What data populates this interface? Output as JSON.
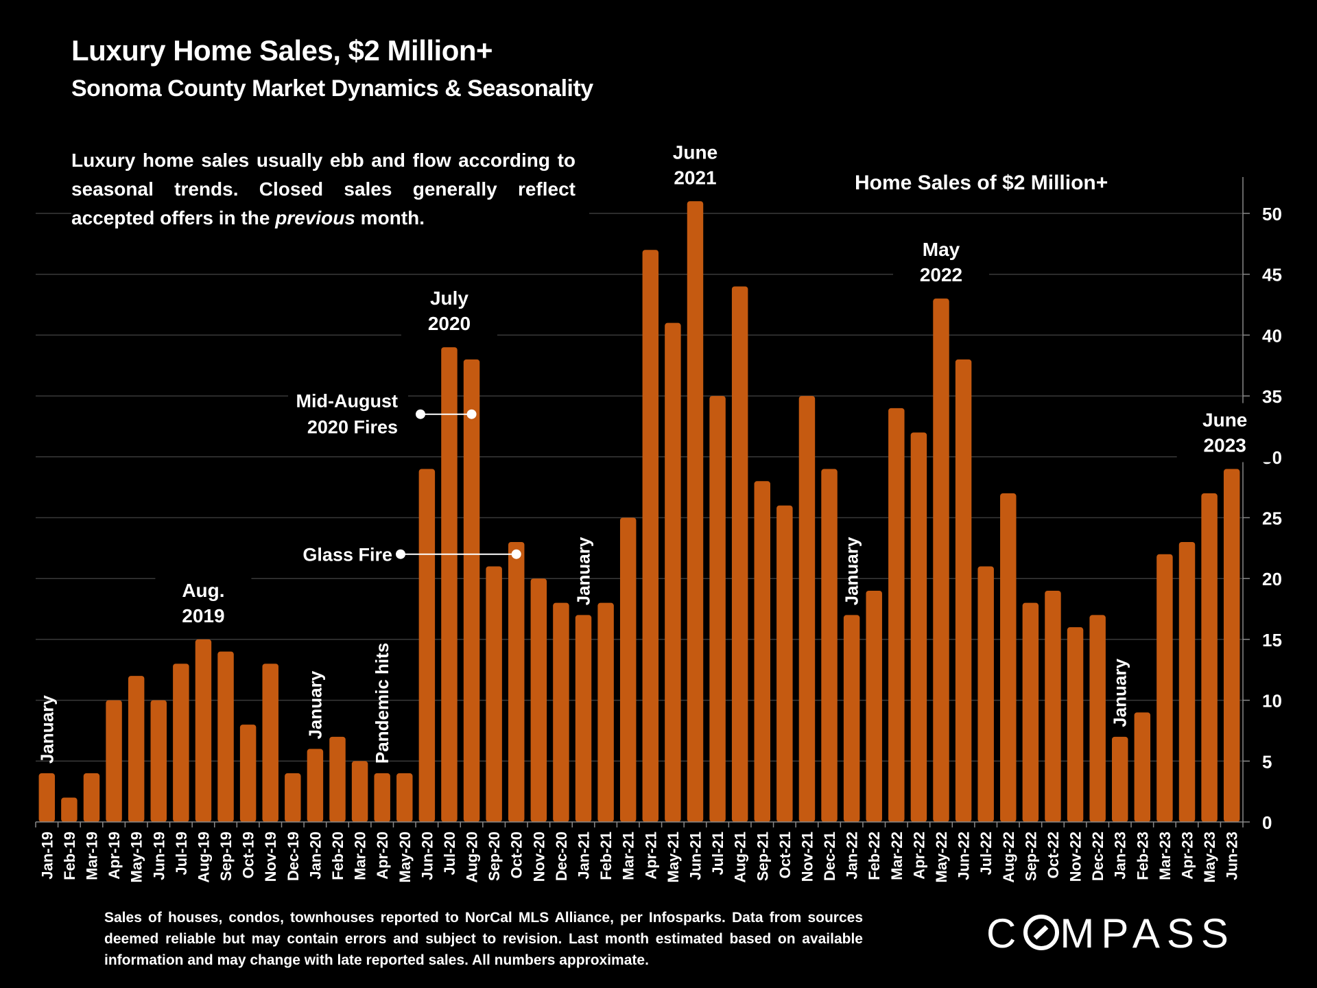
{
  "header": {
    "title": "Luxury Home Sales, $2 Million+",
    "subtitle": "Sonoma County Market Dynamics & Seasonality"
  },
  "intro": {
    "part1": "Luxury home sales usually ebb and flow according to seasonal trends.  Closed sales generally reflect accepted offers in the ",
    "emphasis": "previous",
    "part2": " month."
  },
  "footer": {
    "note": "Sales of houses, condos, townhouses reported to NorCal MLS Alliance, per Infosparks. Data from sources deemed reliable but may contain errors and subject to revision. Last month estimated based on available information and may change with late reported sales. All numbers approximate."
  },
  "logo": {
    "text": "COMPASS",
    "prefix": "C",
    "suffix": "MPASS"
  },
  "colors": {
    "bar": "#C55A11",
    "background": "#000000",
    "text": "#FFFFFF",
    "grid": "#3A3A3A"
  },
  "chart_data": {
    "type": "bar",
    "title": "Home Sales of $2 Million+",
    "xlabel": "",
    "ylabel": "",
    "ylim": [
      0,
      53
    ],
    "yticks": [
      0,
      5,
      10,
      15,
      20,
      25,
      30,
      35,
      40,
      45,
      50
    ],
    "y_axis_side": "right",
    "grid": true,
    "legend": "none",
    "categories": [
      "Jan-19",
      "Feb-19",
      "Mar-19",
      "Apr-19",
      "May-19",
      "Jun-19",
      "Jul-19",
      "Aug-19",
      "Sep-19",
      "Oct-19",
      "Nov-19",
      "Dec-19",
      "Jan-20",
      "Feb-20",
      "Mar-20",
      "Apr-20",
      "May-20",
      "Jun-20",
      "Jul-20",
      "Aug-20",
      "Sep-20",
      "Oct-20",
      "Nov-20",
      "Dec-20",
      "Jan-21",
      "Feb-21",
      "Mar-21",
      "Apr-21",
      "May-21",
      "Jun-21",
      "Jul-21",
      "Aug-21",
      "Sep-21",
      "Oct-21",
      "Nov-21",
      "Dec-21",
      "Jan-22",
      "Feb-22",
      "Mar-22",
      "Apr-22",
      "May-22",
      "Jun-22",
      "Jul-22",
      "Aug-22",
      "Sep-22",
      "Oct-22",
      "Nov-22",
      "Dec-22",
      "Jan-23",
      "Feb-23",
      "Mar-23",
      "Apr-23",
      "May-23",
      "Jun-23"
    ],
    "values": [
      4,
      2,
      4,
      10,
      12,
      10,
      13,
      15,
      14,
      8,
      13,
      4,
      6,
      7,
      5,
      4,
      4,
      29,
      39,
      38,
      21,
      23,
      20,
      18,
      17,
      18,
      25,
      47,
      41,
      51,
      35,
      44,
      28,
      26,
      35,
      29,
      17,
      19,
      34,
      32,
      43,
      38,
      21,
      27,
      18,
      19,
      16,
      17,
      7,
      9,
      22,
      23,
      27,
      29
    ],
    "annotations": [
      {
        "text": "January",
        "category": "Jan-19",
        "orientation": "vertical"
      },
      {
        "text": "Aug. 2019",
        "lines": [
          "Aug.",
          "2019"
        ],
        "category": "Aug-19",
        "orientation": "horizontal"
      },
      {
        "text": "January",
        "category": "Jan-20",
        "orientation": "vertical"
      },
      {
        "text": "Pandemic hits",
        "category": "Apr-20",
        "orientation": "vertical"
      },
      {
        "text": "July 2020",
        "lines": [
          "July",
          "2020"
        ],
        "category": "Jul-20",
        "orientation": "horizontal"
      },
      {
        "text": "January",
        "category": "Jan-21",
        "orientation": "vertical"
      },
      {
        "text": "June 2021",
        "lines": [
          "June",
          "2021"
        ],
        "category": "Jun-21",
        "orientation": "horizontal"
      },
      {
        "text": "January",
        "category": "Jan-22",
        "orientation": "vertical"
      },
      {
        "text": "May 2022",
        "lines": [
          "May",
          "2022"
        ],
        "category": "May-22",
        "orientation": "horizontal"
      },
      {
        "text": "January",
        "category": "Jan-23",
        "orientation": "vertical"
      },
      {
        "text": "June 2023",
        "lines": [
          "June",
          "2023"
        ],
        "category": "Jun-23",
        "orientation": "horizontal"
      }
    ],
    "callouts": [
      {
        "text": "Mid-August 2020 Fires",
        "lines": [
          "Mid-August",
          "2020 Fires"
        ],
        "category": "Aug-20",
        "value": 33.5
      },
      {
        "text": "Glass Fire",
        "lines": [
          "Glass Fire"
        ],
        "category": "Oct-20",
        "value": 22
      }
    ]
  }
}
